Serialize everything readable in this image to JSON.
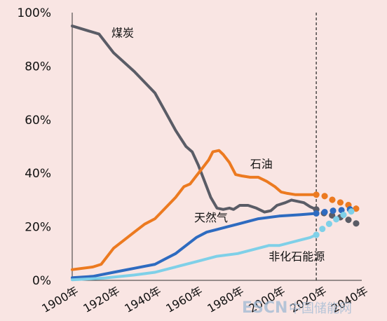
{
  "chart_data": {
    "type": "line",
    "title": "",
    "xlabel": "",
    "ylabel": "",
    "xlim": [
      1900,
      2040
    ],
    "ylim": [
      0,
      100
    ],
    "x_ticks": [
      1900,
      1920,
      1940,
      1960,
      1980,
      2000,
      2020,
      2040
    ],
    "x_tick_labels": [
      "1900年",
      "1920年",
      "1940年",
      "1960年",
      "1980年",
      "2000年",
      "2020年",
      "2040年"
    ],
    "y_ticks": [
      0,
      20,
      40,
      60,
      80,
      100
    ],
    "y_tick_labels": [
      "0%",
      "20%",
      "40%",
      "60%",
      "80%",
      "100%"
    ],
    "grid": false,
    "legend": "none",
    "projection_start": 2018,
    "series": [
      {
        "name": "煤炭",
        "color": "#5a5c66",
        "points": [
          [
            1900,
            95
          ],
          [
            1913,
            92
          ],
          [
            1920,
            85
          ],
          [
            1930,
            78
          ],
          [
            1940,
            70
          ],
          [
            1945,
            63
          ],
          [
            1950,
            56
          ],
          [
            1955,
            50
          ],
          [
            1958,
            48
          ],
          [
            1961,
            43
          ],
          [
            1964,
            37
          ],
          [
            1967,
            31
          ],
          [
            1970,
            27
          ],
          [
            1973,
            26.5
          ],
          [
            1976,
            27
          ],
          [
            1978,
            26.5
          ],
          [
            1981,
            28
          ],
          [
            1985,
            28
          ],
          [
            1989,
            27
          ],
          [
            1993,
            25.5
          ],
          [
            1996,
            26
          ],
          [
            1999,
            28
          ],
          [
            2003,
            29
          ],
          [
            2006,
            30
          ],
          [
            2009,
            29.5
          ],
          [
            2012,
            29
          ],
          [
            2015,
            27.5
          ],
          [
            2018,
            26.5
          ]
        ],
        "projection": [
          [
            2018,
            26.5
          ],
          [
            2022,
            25
          ],
          [
            2026,
            24.2
          ],
          [
            2030,
            23.5
          ],
          [
            2034,
            22.5
          ],
          [
            2038,
            21
          ]
        ]
      },
      {
        "name": "石油",
        "color": "#ec7a20",
        "points": [
          [
            1900,
            4
          ],
          [
            1910,
            5
          ],
          [
            1914,
            6
          ],
          [
            1920,
            12
          ],
          [
            1925,
            15
          ],
          [
            1930,
            18
          ],
          [
            1935,
            21
          ],
          [
            1940,
            23
          ],
          [
            1945,
            27
          ],
          [
            1950,
            31
          ],
          [
            1954,
            35
          ],
          [
            1957,
            36
          ],
          [
            1960,
            39
          ],
          [
            1963,
            42
          ],
          [
            1966,
            45
          ],
          [
            1968,
            48
          ],
          [
            1971,
            48.5
          ],
          [
            1973,
            47
          ],
          [
            1976,
            44
          ],
          [
            1979,
            39.5
          ],
          [
            1982,
            39
          ],
          [
            1986,
            38.5
          ],
          [
            1990,
            38.5
          ],
          [
            1994,
            37
          ],
          [
            1998,
            35
          ],
          [
            2001,
            33
          ],
          [
            2004,
            32.5
          ],
          [
            2008,
            32
          ],
          [
            2012,
            32
          ],
          [
            2016,
            32
          ],
          [
            2018,
            32
          ]
        ],
        "projection": [
          [
            2018,
            32
          ],
          [
            2022,
            31.5
          ],
          [
            2026,
            30
          ],
          [
            2030,
            29
          ],
          [
            2034,
            28
          ],
          [
            2038,
            26.5
          ]
        ]
      },
      {
        "name": "天然气",
        "color": "#2e6bc0",
        "points": [
          [
            1900,
            1
          ],
          [
            1910,
            1.5
          ],
          [
            1920,
            3
          ],
          [
            1930,
            4.5
          ],
          [
            1940,
            6
          ],
          [
            1945,
            8
          ],
          [
            1950,
            10
          ],
          [
            1955,
            13
          ],
          [
            1960,
            16
          ],
          [
            1965,
            18
          ],
          [
            1970,
            19
          ],
          [
            1975,
            20
          ],
          [
            1980,
            21
          ],
          [
            1990,
            23
          ],
          [
            2000,
            24
          ],
          [
            2010,
            24.5
          ],
          [
            2018,
            25
          ]
        ],
        "projection": [
          [
            2018,
            25
          ],
          [
            2022,
            25.5
          ],
          [
            2026,
            26
          ],
          [
            2030,
            26.2
          ],
          [
            2034,
            26.5
          ],
          [
            2038,
            27
          ]
        ]
      },
      {
        "name": "非化石能源",
        "color": "#7fd0e8",
        "points": [
          [
            1900,
            0.2
          ],
          [
            1915,
            0.8
          ],
          [
            1930,
            2
          ],
          [
            1940,
            3
          ],
          [
            1950,
            5
          ],
          [
            1960,
            7
          ],
          [
            1970,
            9
          ],
          [
            1980,
            10
          ],
          [
            1990,
            12
          ],
          [
            1995,
            13
          ],
          [
            2000,
            13
          ],
          [
            2005,
            14
          ],
          [
            2010,
            15
          ],
          [
            2015,
            16
          ],
          [
            2018,
            17
          ]
        ],
        "projection": [
          [
            2018,
            17
          ],
          [
            2022,
            20
          ],
          [
            2026,
            22
          ],
          [
            2030,
            24
          ],
          [
            2034,
            25.5
          ],
          [
            2038,
            26.5
          ]
        ]
      }
    ],
    "series_labels": [
      {
        "text": "煤炭",
        "x": 1919,
        "y": 91
      },
      {
        "text": "石油",
        "x": 1986,
        "y": 42
      },
      {
        "text": "天然气",
        "x": 1959,
        "y": 22
      },
      {
        "text": "非化石能源",
        "x": 1995,
        "y": 7.5
      }
    ]
  },
  "watermark": {
    "brand": "ESCN",
    "site": "中国储能网"
  }
}
